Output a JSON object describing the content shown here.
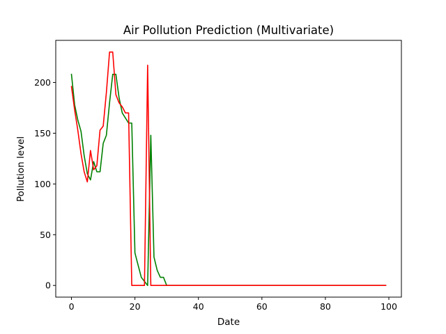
{
  "chart_data": {
    "type": "line",
    "title": "Air Pollution Prediction (Multivariate)",
    "xlabel": "Date",
    "ylabel": "Pollution level",
    "xlim": [
      -4.95,
      103.95
    ],
    "ylim": [
      -11.5,
      241.5
    ],
    "xticks": [
      0,
      20,
      40,
      60,
      80,
      100
    ],
    "yticks": [
      0,
      50,
      100,
      150,
      200
    ],
    "xtick_labels": [
      "0",
      "20",
      "40",
      "60",
      "80",
      "100"
    ],
    "ytick_labels": [
      "0",
      "50",
      "100",
      "150",
      "200"
    ],
    "grid": false,
    "legend": "none",
    "series": [
      {
        "color": "#008000",
        "x": [
          0,
          1,
          2,
          3,
          4,
          5,
          6,
          7,
          8,
          9,
          10,
          11,
          12,
          13,
          14,
          15,
          16,
          17,
          18,
          19,
          20,
          21,
          22,
          23,
          24,
          25,
          26,
          27,
          28,
          29,
          30,
          31,
          99
        ],
        "y": [
          208,
          178,
          163,
          152,
          128,
          110,
          104,
          122,
          112,
          112,
          140,
          148,
          180,
          208,
          208,
          185,
          170,
          165,
          160,
          160,
          32,
          20,
          8,
          4,
          0,
          148,
          28,
          15,
          8,
          8,
          0,
          0,
          0
        ]
      },
      {
        "color": "#ff0000",
        "x": [
          0,
          1,
          2,
          3,
          4,
          5,
          6,
          7,
          8,
          9,
          10,
          11,
          12,
          13,
          14,
          15,
          16,
          17,
          18,
          19,
          20,
          21,
          22,
          23,
          24,
          25,
          26,
          27,
          28,
          29,
          30,
          99
        ],
        "y": [
          196,
          173,
          153,
          130,
          112,
          102,
          133,
          114,
          118,
          153,
          157,
          190,
          230,
          230,
          188,
          180,
          176,
          170,
          170,
          0,
          0,
          0,
          0,
          0,
          217,
          0,
          0,
          0,
          0,
          0,
          0,
          0
        ]
      }
    ]
  }
}
